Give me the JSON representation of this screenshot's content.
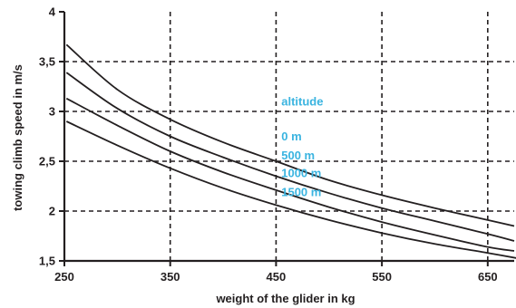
{
  "chart_data": {
    "type": "line",
    "title": "",
    "xlabel": "weight of the glider in kg",
    "ylabel": "towing climb speed in m/s",
    "xlim": [
      250,
      675
    ],
    "ylim": [
      1.5,
      4
    ],
    "x_ticks": [
      250,
      350,
      450,
      550,
      650
    ],
    "x_tick_labels": [
      "250",
      "350",
      "450",
      "550",
      "650"
    ],
    "y_ticks": [
      1.5,
      2,
      2.5,
      3,
      3.5,
      4
    ],
    "y_tick_labels": [
      "1,5",
      "2",
      "2,5",
      "3",
      "3,5",
      "4"
    ],
    "grid": true,
    "legend_title": "altitude",
    "label_color": "#3ab4e0",
    "line_color": "#231f20",
    "grid_color": "#231f20",
    "series": [
      {
        "name": "0 m",
        "x": [
          252,
          300,
          350,
          400,
          450,
          500,
          550,
          600,
          650,
          675
        ],
        "y": [
          3.67,
          3.22,
          2.92,
          2.69,
          2.5,
          2.31,
          2.16,
          2.03,
          1.91,
          1.85
        ]
      },
      {
        "name": "500 m",
        "x": [
          252,
          300,
          350,
          400,
          450,
          500,
          550,
          600,
          650,
          675
        ],
        "y": [
          3.39,
          3.03,
          2.75,
          2.54,
          2.35,
          2.18,
          2.03,
          1.9,
          1.77,
          1.7
        ]
      },
      {
        "name": "1000 m",
        "x": [
          252,
          300,
          350,
          400,
          450,
          500,
          550,
          600,
          650,
          675
        ],
        "y": [
          3.13,
          2.86,
          2.6,
          2.39,
          2.21,
          2.04,
          1.89,
          1.76,
          1.64,
          1.6
        ]
      },
      {
        "name": "1500 m",
        "x": [
          252,
          300,
          350,
          400,
          450,
          500,
          550,
          600,
          650,
          692
        ],
        "y": [
          2.9,
          2.66,
          2.43,
          2.23,
          2.06,
          1.91,
          1.78,
          1.67,
          1.58,
          1.5
        ]
      }
    ]
  }
}
